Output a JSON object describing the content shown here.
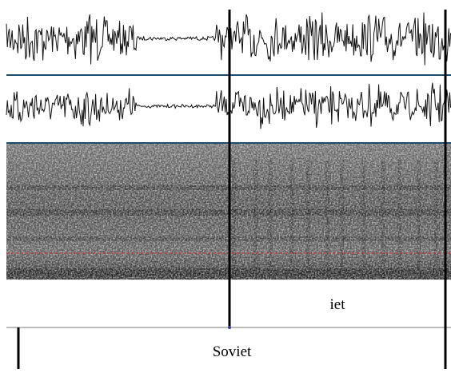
{
  "tiers": [
    {
      "label": "iet"
    },
    {
      "label": "Soviet"
    }
  ]
}
